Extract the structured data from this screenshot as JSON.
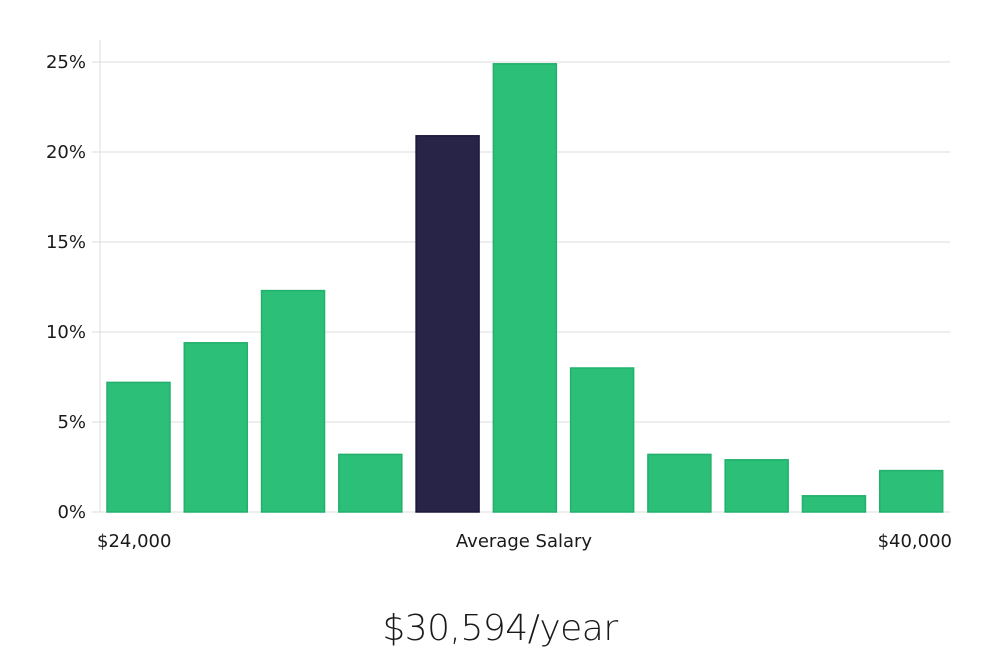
{
  "chart_data": {
    "type": "bar",
    "categories": [
      "",
      "",
      "",
      "",
      "",
      "",
      "",
      "",
      "",
      "",
      ""
    ],
    "values": [
      7.2,
      9.4,
      12.3,
      3.2,
      20.9,
      24.9,
      8.0,
      3.2,
      2.9,
      0.9,
      2.3
    ],
    "highlight_index": 4,
    "ylim": [
      0,
      25
    ],
    "yticks": [
      0,
      5,
      10,
      15,
      20,
      25
    ],
    "ytick_format": "%",
    "grid": true,
    "x_labels": {
      "left": "$24,000",
      "center": "Average Salary",
      "right": "$40,000"
    },
    "colors": {
      "bar": "#2bbf78",
      "bar_border": "#22b06c",
      "highlight": "#282447",
      "highlight_border": "#1b1838"
    }
  },
  "caption": "$30,594/year"
}
